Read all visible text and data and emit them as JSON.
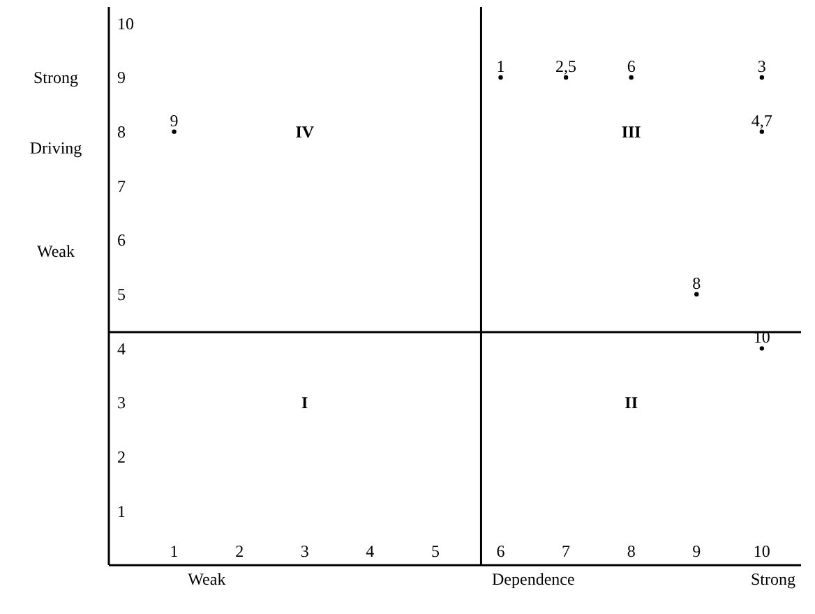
{
  "chart_data": {
    "type": "scatter",
    "xlabel": "Dependence",
    "ylabel": "Driving",
    "x": [
      6,
      7,
      8,
      10,
      10,
      1,
      9,
      10
    ],
    "values": [
      9,
      9,
      9,
      9,
      8,
      8,
      5,
      4
    ],
    "marker": "circle",
    "color": "#000000",
    "xlim": [
      0,
      10.6
    ],
    "ylim": [
      0,
      10.3
    ],
    "xticks": [
      1,
      2,
      3,
      4,
      5,
      6,
      7,
      8,
      9,
      10
    ],
    "yticks": [
      1,
      2,
      3,
      4,
      5,
      6,
      7,
      8,
      9,
      10
    ],
    "ref_lines": [
      {
        "axis": "x",
        "value": 5.7
      },
      {
        "axis": "y",
        "value": 4.3
      }
    ],
    "annotations": [
      "Strong",
      "Weak",
      "Weak",
      "Strong",
      "IV",
      "III",
      "I",
      "II",
      {
        "text": "1",
        "x": 6,
        "y": 9
      },
      {
        "text": "2,5",
        "x": 7,
        "y": 9
      },
      {
        "text": "6",
        "x": 8,
        "y": 9
      },
      {
        "text": "3",
        "x": 10,
        "y": 9
      },
      {
        "text": "4,7",
        "x": 10,
        "y": 8
      },
      {
        "text": "9",
        "x": 1,
        "y": 8
      },
      {
        "text": "8",
        "x": 9,
        "y": 5
      },
      {
        "text": "10",
        "x": 10,
        "y": 4
      }
    ],
    "grid": false
  }
}
